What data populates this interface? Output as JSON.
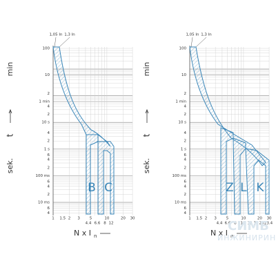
{
  "panels": [
    {
      "top_labels": [
        "1,05 In",
        "1,3 In"
      ],
      "y_labels": [
        "100",
        "10",
        "2",
        "1 min",
        "4",
        "2",
        "10 s",
        "4",
        "2",
        "1 s",
        "6",
        "4",
        "2",
        "100 ms",
        "6",
        "4",
        "2",
        "10 ms",
        "6",
        "4"
      ],
      "x_labels": [
        "1",
        "1.5",
        "2",
        "3",
        "5",
        "10",
        "20",
        "30"
      ],
      "x_sub_labels": [
        "4.4",
        "6.6",
        "8",
        "12"
      ],
      "curve_labels": [
        "B",
        "C"
      ],
      "axis_min": "min",
      "axis_sec": "sek.",
      "axis_t": "t",
      "axis_x": "N x I",
      "axis_x_sub": "n"
    },
    {
      "top_labels": [
        "1,05 In",
        "1,3 In"
      ],
      "y_labels": [
        "100",
        "10",
        "2",
        "1 min",
        "4",
        "2",
        "10 s",
        "4",
        "2",
        "1 s",
        "6",
        "4",
        "2",
        "100 ms",
        "6",
        "4",
        "2",
        "10 ms",
        "6",
        "4"
      ],
      "x_labels": [
        "1",
        "1.5",
        "2",
        "3",
        "5",
        "10",
        "20",
        "30"
      ],
      "x_sub_labels": [
        "4.4",
        "6.6",
        "8",
        "10",
        "12",
        "16",
        "20",
        "23.4"
      ],
      "curve_labels": [
        "Z",
        "L",
        "K"
      ],
      "axis_min": "min",
      "axis_sec": "sek.",
      "axis_t": "t",
      "axis_x": "N x I",
      "axis_x_sub": "n"
    }
  ],
  "watermark": {
    "logo": "СИМБ",
    "name": "ИНЖИНИРИНГ"
  }
}
